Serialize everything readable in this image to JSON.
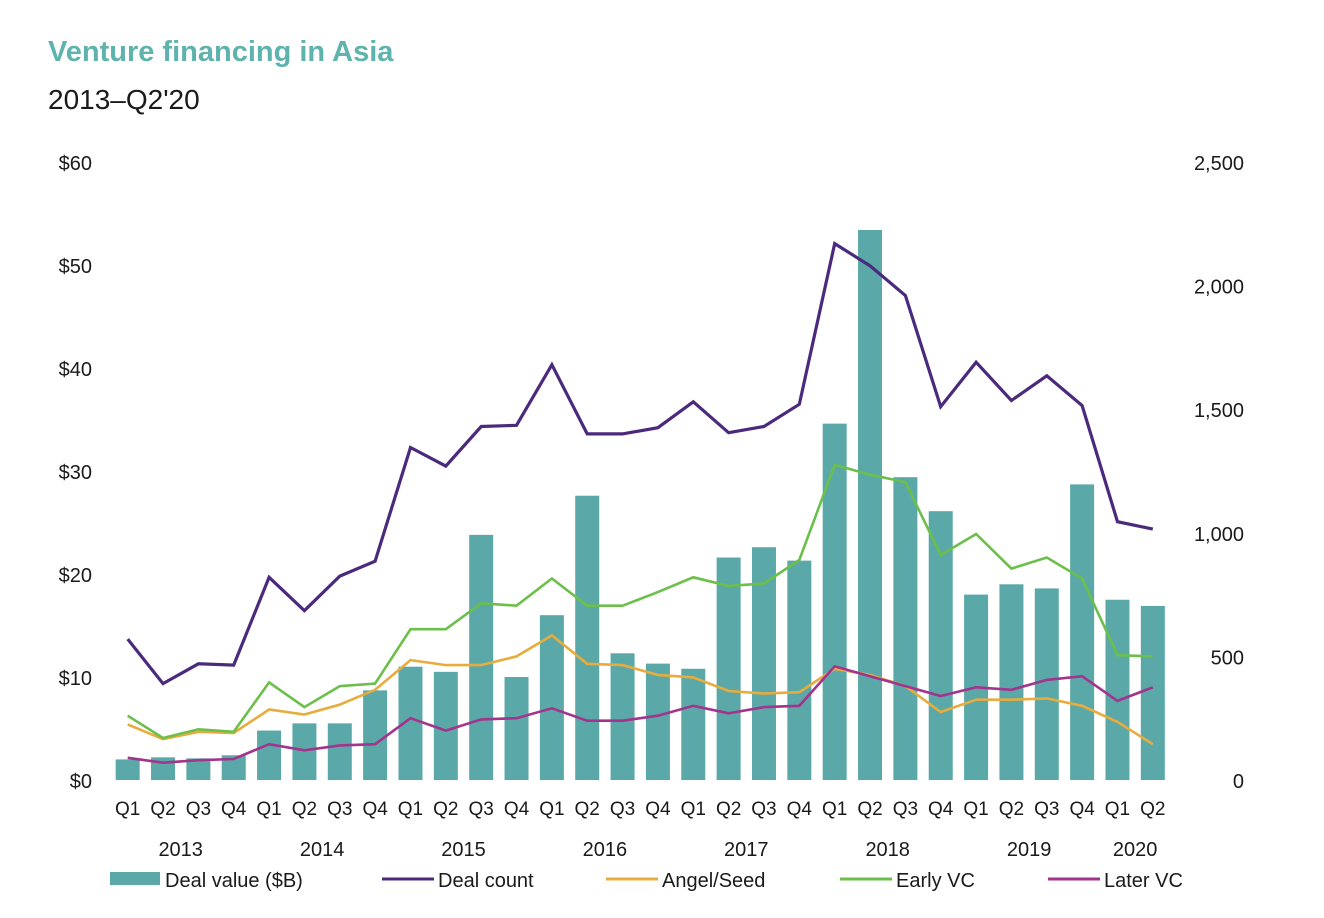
{
  "title": "Venture financing in Asia",
  "subtitle": "2013–Q2'20",
  "chart_data": {
    "type": "bar",
    "quarters": [
      "Q1",
      "Q2",
      "Q3",
      "Q4",
      "Q1",
      "Q2",
      "Q3",
      "Q4",
      "Q1",
      "Q2",
      "Q3",
      "Q4",
      "Q1",
      "Q2",
      "Q3",
      "Q4",
      "Q1",
      "Q2",
      "Q3",
      "Q4",
      "Q1",
      "Q2",
      "Q3",
      "Q4",
      "Q1",
      "Q2",
      "Q3",
      "Q4",
      "Q1",
      "Q2"
    ],
    "years": [
      "2013",
      "2014",
      "2015",
      "2016",
      "2017",
      "2018",
      "2019",
      "2020"
    ],
    "left_axis": {
      "ylim": [
        0,
        60
      ],
      "ticks": [
        "$0",
        "$10",
        "$20",
        "$30",
        "$40",
        "$50",
        "$60"
      ]
    },
    "right_axis": {
      "ylim": [
        0,
        2500
      ],
      "ticks": [
        "0",
        "500",
        "1,000",
        "1,500",
        "2,000",
        "2,500"
      ]
    },
    "series": [
      {
        "name": "Deal value ($B)",
        "kind": "bar",
        "axis": "left",
        "color": "#5aa9a8",
        "values": [
          2.0,
          2.2,
          2.1,
          2.4,
          4.8,
          5.5,
          5.5,
          8.7,
          11.0,
          10.5,
          23.8,
          10.0,
          16.0,
          27.6,
          12.3,
          11.3,
          10.8,
          21.6,
          22.6,
          21.3,
          34.6,
          53.4,
          29.4,
          26.1,
          18.0,
          19.0,
          18.6,
          28.7,
          17.5,
          16.9
        ]
      },
      {
        "name": "Deal count",
        "kind": "line",
        "axis": "right",
        "color": "#4b2a7d",
        "values": [
          570,
          390,
          470,
          465,
          820,
          685,
          825,
          885,
          1345,
          1270,
          1430,
          1435,
          1680,
          1400,
          1400,
          1425,
          1530,
          1405,
          1430,
          1520,
          2170,
          2080,
          1960,
          1510,
          1690,
          1535,
          1635,
          1515,
          1045,
          1015
        ]
      },
      {
        "name": "Angel/Seed",
        "kind": "line",
        "axis": "right",
        "color": "#e8ac3e",
        "values": [
          225,
          165,
          195,
          190,
          285,
          265,
          305,
          365,
          485,
          465,
          465,
          500,
          585,
          470,
          465,
          425,
          415,
          360,
          350,
          355,
          450,
          425,
          380,
          275,
          325,
          325,
          330,
          300,
          235,
          145
        ]
      },
      {
        "name": "Early VC",
        "kind": "line",
        "axis": "right",
        "color": "#6cbf4a",
        "values": [
          260,
          170,
          205,
          195,
          395,
          295,
          380,
          390,
          610,
          610,
          715,
          705,
          815,
          705,
          705,
          760,
          820,
          785,
          795,
          890,
          1275,
          1235,
          1205,
          910,
          995,
          855,
          900,
          815,
          505,
          500
        ]
      },
      {
        "name": "Later VC",
        "kind": "line",
        "axis": "right",
        "color": "#a3338c",
        "values": [
          90,
          70,
          80,
          85,
          145,
          120,
          140,
          145,
          250,
          200,
          245,
          250,
          290,
          240,
          240,
          260,
          300,
          270,
          295,
          300,
          460,
          420,
          380,
          340,
          375,
          365,
          405,
          420,
          320,
          375
        ]
      }
    ]
  }
}
